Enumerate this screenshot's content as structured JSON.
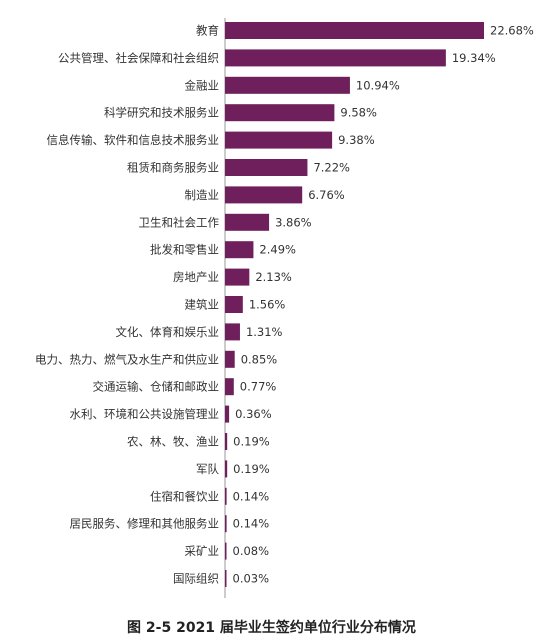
{
  "colors": {
    "bar": "#6e1f5c",
    "text": "#333333",
    "axis": "#999999"
  },
  "caption": "图 2-5 2021 届毕业生签约单位行业分布情况",
  "chart_data": {
    "type": "bar",
    "orientation": "horizontal",
    "title": "图 2-5 2021 届毕业生签约单位行业分布情况",
    "xlabel": "",
    "ylabel": "",
    "unit": "%",
    "grid": false,
    "legend": "none",
    "categories": [
      "教育",
      "公共管理、社会保障和社会组织",
      "金融业",
      "科学研究和技术服务业",
      "信息传输、软件和信息技术服务业",
      "租赁和商务服务业",
      "制造业",
      "卫生和社会工作",
      "批发和零售业",
      "房地产业",
      "建筑业",
      "文化、体育和娱乐业",
      "电力、热力、燃气及水生产和供应业",
      "交通运输、仓储和邮政业",
      "水利、环境和公共设施管理业",
      "农、林、牧、渔业",
      "军队",
      "住宿和餐饮业",
      "居民服务、修理和其他服务业",
      "采矿业",
      "国际组织"
    ],
    "values": [
      22.68,
      19.34,
      10.94,
      9.58,
      9.38,
      7.22,
      6.76,
      3.86,
      2.49,
      2.13,
      1.56,
      1.31,
      0.85,
      0.77,
      0.36,
      0.19,
      0.19,
      0.14,
      0.14,
      0.08,
      0.03
    ],
    "value_labels": [
      "22.68%",
      "19.34%",
      "10.94%",
      "9.58%",
      "9.38%",
      "7.22%",
      "6.76%",
      "3.86%",
      "2.49%",
      "2.13%",
      "1.56%",
      "1.31%",
      "0.85%",
      "0.77%",
      "0.36%",
      "0.19%",
      "0.19%",
      "0.14%",
      "0.14%",
      "0.08%",
      "0.03%"
    ],
    "xlim": [
      0,
      22.68
    ]
  }
}
